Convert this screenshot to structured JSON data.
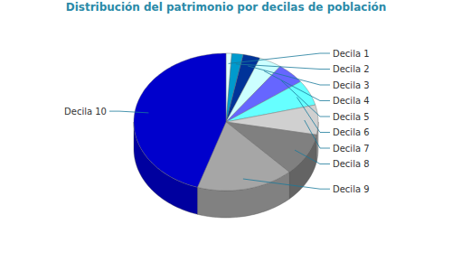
{
  "chart_data": {
    "type": "pie",
    "title": "Distribución del patrimonio por decilas de población",
    "categories": [
      "Decila 1",
      "Decila 2",
      "Decila 3",
      "Decila 4",
      "Decila 5",
      "Decila 6",
      "Decila 7",
      "Decila 8",
      "Decila 9",
      "Decila 10"
    ],
    "values": [
      1,
      2,
      3,
      4,
      5,
      6,
      7,
      10,
      17,
      45
    ],
    "colors": [
      "#e0ffff",
      "#009acd",
      "#003399",
      "#ccffff",
      "#6666ff",
      "#66ffff",
      "#d0d0d0",
      "#808080",
      "#a6a6a6",
      "#0000cc"
    ]
  }
}
